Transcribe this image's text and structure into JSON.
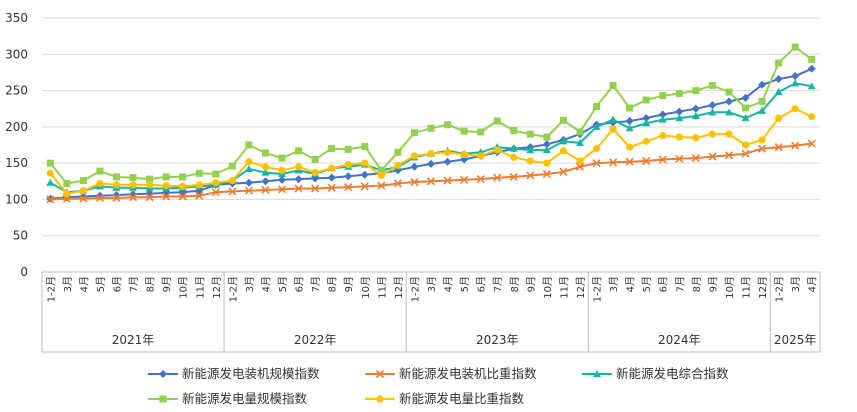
{
  "chart_data": {
    "type": "line",
    "title": "",
    "xlabel": "",
    "ylabel": "",
    "ylim": [
      0,
      350
    ],
    "yticks": [
      0,
      50,
      100,
      150,
      200,
      250,
      300,
      350
    ],
    "grid": "horizontal",
    "legend_position": "bottom",
    "categories": [
      "1-2月",
      "3月",
      "4月",
      "5月",
      "6月",
      "7月",
      "8月",
      "9月",
      "10月",
      "11月",
      "12月",
      "1-2月",
      "3月",
      "4月",
      "5月",
      "6月",
      "7月",
      "8月",
      "9月",
      "10月",
      "11月",
      "12月",
      "1-2月",
      "3月",
      "4月",
      "5月",
      "6月",
      "7月",
      "8月",
      "9月",
      "10月",
      "11月",
      "12月",
      "1-2月",
      "3月",
      "4月",
      "5月",
      "6月",
      "7月",
      "8月",
      "9月",
      "10月",
      "11月",
      "12月",
      "1-2月",
      "3月",
      "4月"
    ],
    "year_groups": [
      {
        "label": "2021年",
        "count": 11
      },
      {
        "label": "2022年",
        "count": 11
      },
      {
        "label": "2023年",
        "count": 11
      },
      {
        "label": "2024年",
        "count": 11
      },
      {
        "label": "2025年",
        "count": 3
      }
    ],
    "series": [
      {
        "name": "新能源发电装机规模指数",
        "color": "#4472C4",
        "marker": "diamond",
        "values": [
          101,
          103,
          104,
          105,
          106,
          107,
          108,
          109,
          110,
          112,
          120,
          122,
          123,
          125,
          127,
          128,
          129,
          130,
          132,
          134,
          136,
          140,
          145,
          149,
          152,
          155,
          160,
          165,
          170,
          172,
          176,
          182,
          190,
          203,
          206,
          208,
          212,
          217,
          221,
          225,
          230,
          235,
          240,
          258,
          266,
          270,
          280
        ]
      },
      {
        "name": "新能源发电装机比重指数",
        "color": "#ED7D31",
        "marker": "x",
        "values": [
          100,
          101,
          101,
          102,
          102,
          103,
          103,
          104,
          104,
          105,
          110,
          111,
          112,
          113,
          114,
          115,
          115,
          116,
          117,
          118,
          119,
          122,
          124,
          125,
          126,
          127,
          128,
          130,
          131,
          133,
          135,
          138,
          145,
          150,
          151,
          152,
          153,
          155,
          156,
          157,
          159,
          161,
          163,
          170,
          172,
          174,
          177
        ]
      },
      {
        "name": "新能源发电综合指数",
        "color": "#17B3A3",
        "marker": "triangle",
        "values": [
          123,
          110,
          112,
          118,
          116,
          116,
          115,
          115,
          116,
          118,
          120,
          126,
          142,
          137,
          135,
          140,
          135,
          143,
          145,
          148,
          140,
          145,
          158,
          163,
          167,
          163,
          165,
          172,
          170,
          168,
          168,
          180,
          178,
          200,
          210,
          198,
          205,
          210,
          212,
          215,
          220,
          220,
          212,
          222,
          248,
          260,
          256
        ]
      },
      {
        "name": "新能源发电量规模指数",
        "color": "#92D050",
        "marker": "square",
        "values": [
          150,
          122,
          126,
          139,
          131,
          130,
          128,
          131,
          131,
          136,
          135,
          146,
          175,
          164,
          157,
          167,
          155,
          170,
          169,
          173,
          140,
          165,
          192,
          198,
          203,
          194,
          193,
          208,
          195,
          190,
          186,
          209,
          193,
          228,
          257,
          226,
          237,
          243,
          246,
          250,
          257,
          248,
          226,
          235,
          288,
          310,
          293
        ]
      },
      {
        "name": "新能源发电量比重指数",
        "color": "#FFC000",
        "marker": "circle",
        "values": [
          136,
          108,
          112,
          122,
          120,
          120,
          120,
          119,
          118,
          120,
          123,
          126,
          152,
          145,
          140,
          145,
          137,
          143,
          148,
          150,
          133,
          147,
          160,
          163,
          165,
          162,
          160,
          168,
          158,
          153,
          150,
          167,
          153,
          170,
          197,
          172,
          180,
          188,
          186,
          185,
          190,
          190,
          175,
          182,
          212,
          225,
          214
        ]
      }
    ]
  }
}
